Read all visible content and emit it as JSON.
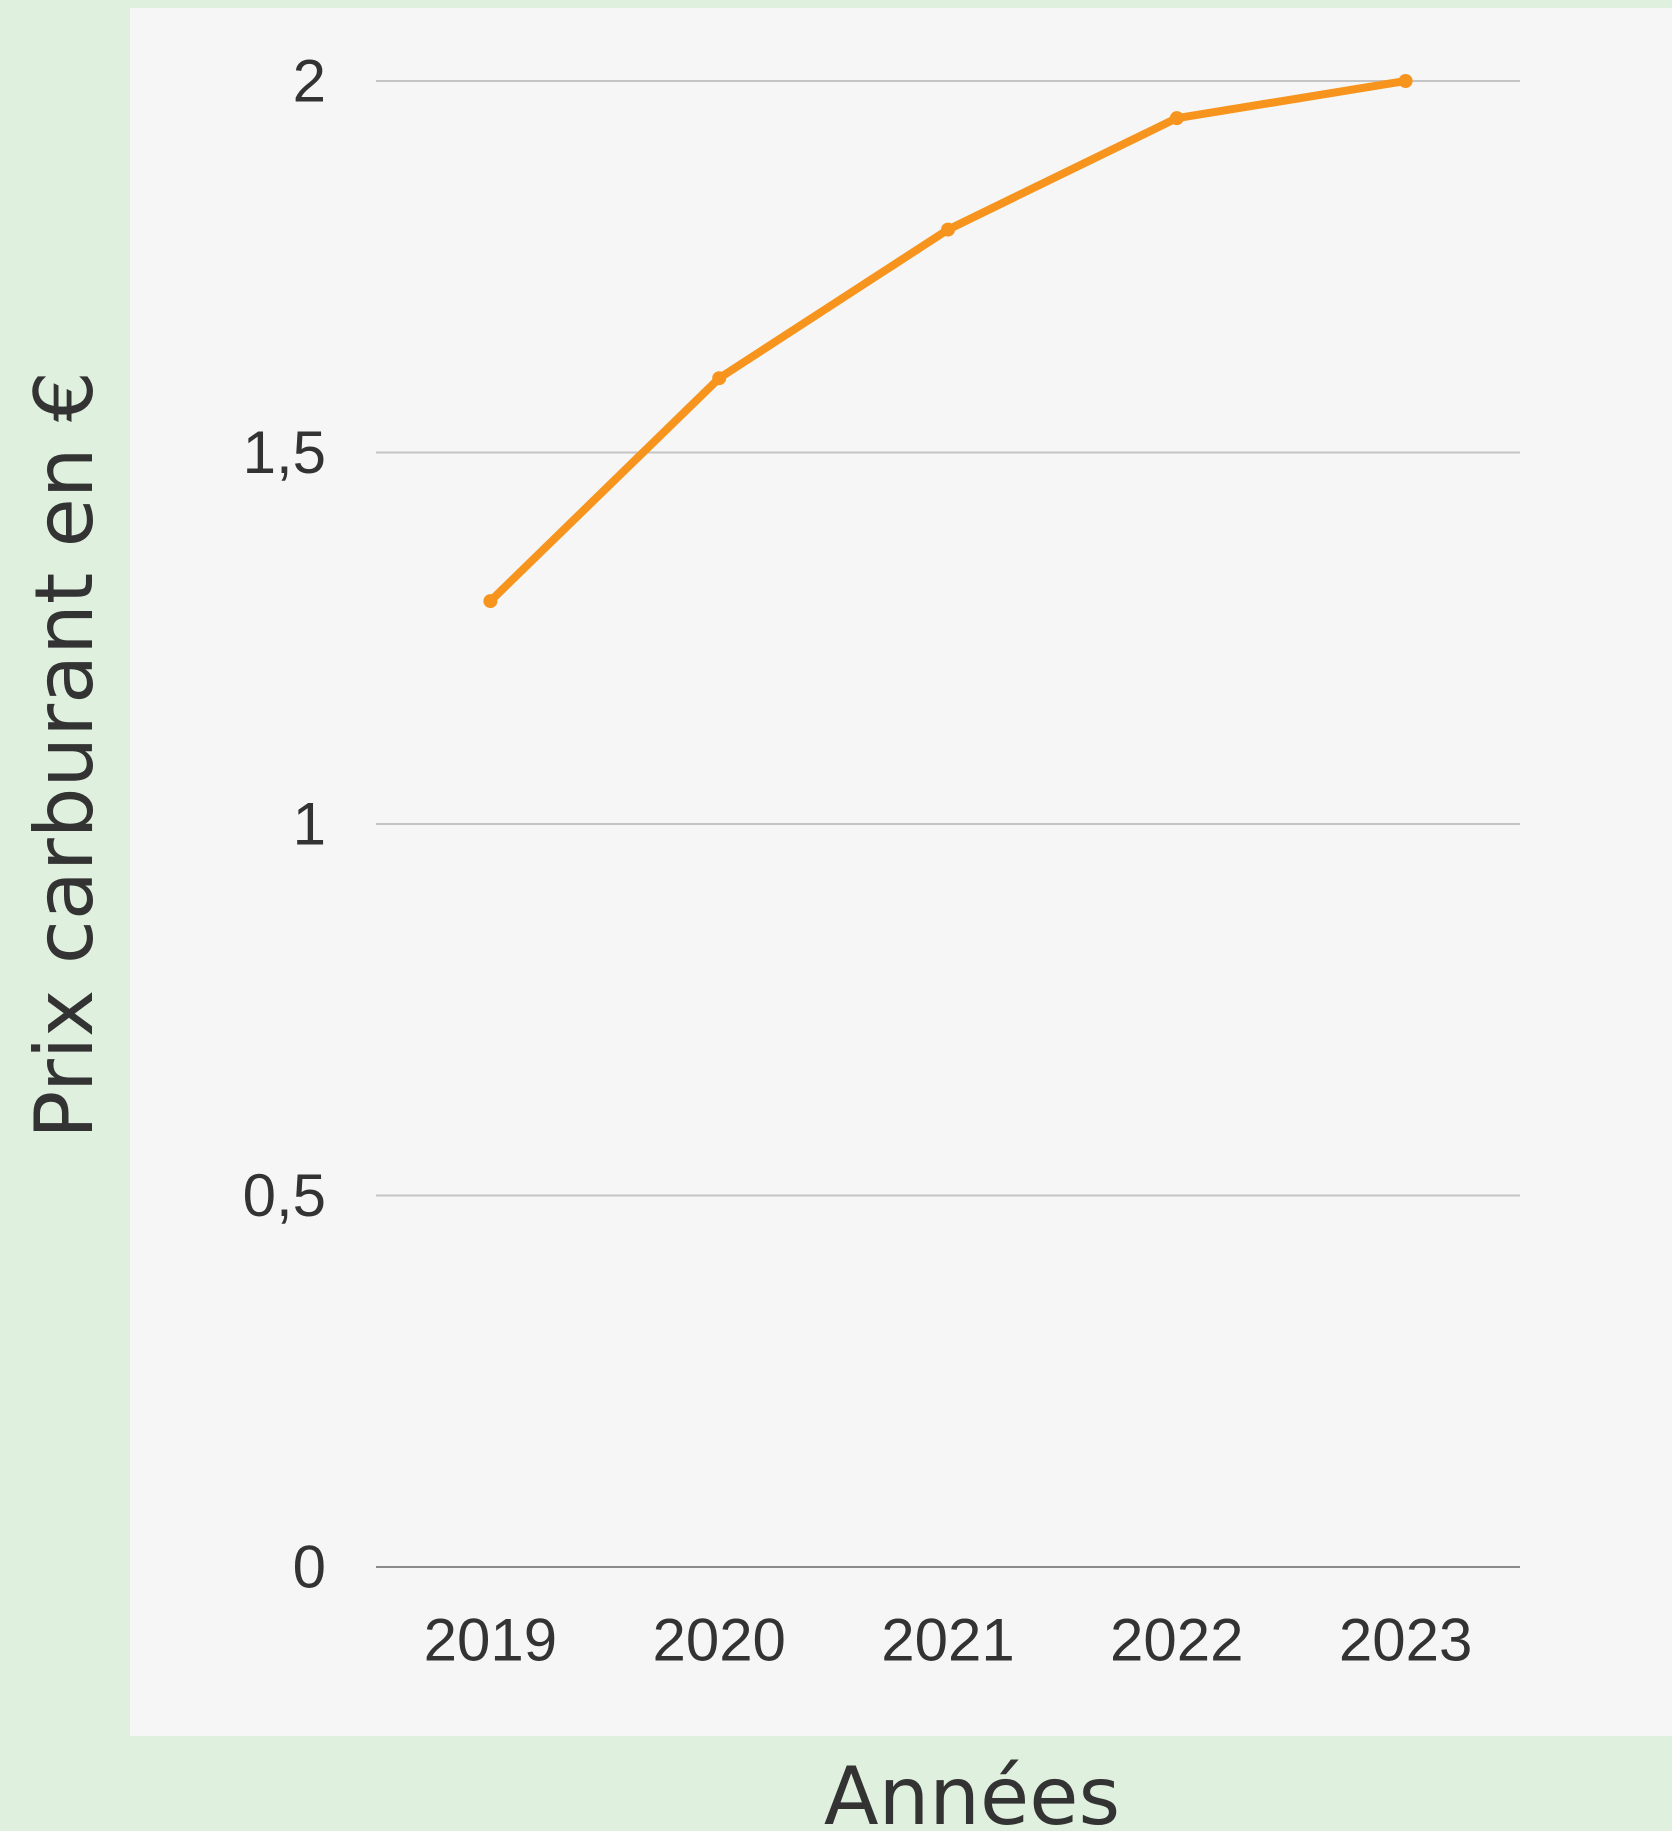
{
  "chart_data": {
    "type": "line",
    "title": "",
    "xlabel": "Années",
    "ylabel": "Prix carburant en €",
    "categories": [
      "2019",
      "2020",
      "2021",
      "2022",
      "2023"
    ],
    "series": [
      {
        "values": [
          1.3,
          1.6,
          1.8,
          1.95,
          2.0
        ]
      }
    ],
    "ylim": [
      0,
      2
    ],
    "yticks": [
      0,
      0.5,
      1,
      1.5,
      2
    ],
    "ytick_labels": [
      "0",
      "0,5",
      "1",
      "1,5",
      "2"
    ],
    "grid": true,
    "legend": "none",
    "colors": {
      "line": "#f7941d",
      "page_background": "#dff0df",
      "plot_background": "#f6f6f6",
      "gridline": "#c4c4c4",
      "baseline": "#8a8a8a",
      "text": "#333333"
    }
  }
}
